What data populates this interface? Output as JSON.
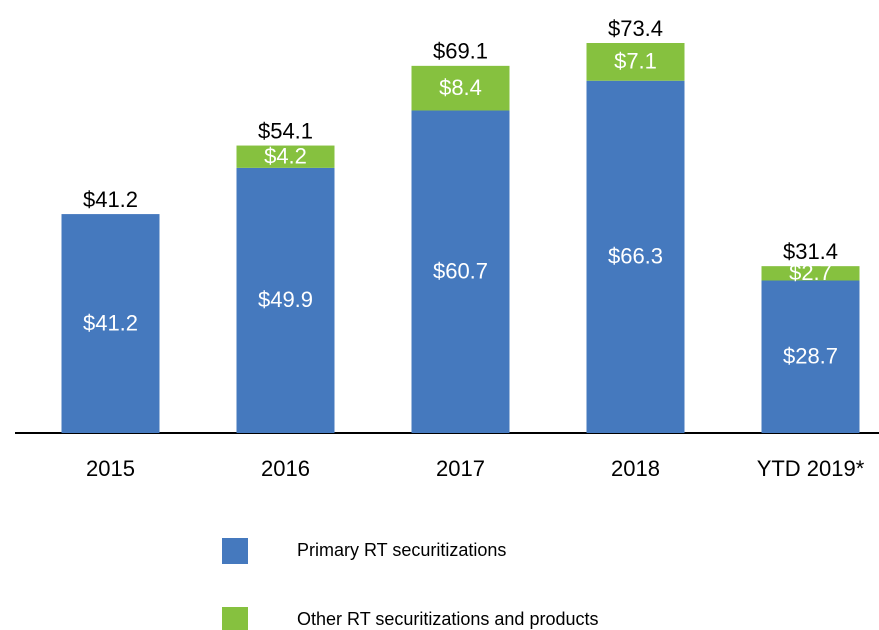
{
  "chart_data": {
    "type": "stacked_bar",
    "categories": [
      "2015",
      "2016",
      "2017",
      "2018",
      "YTD 2019*"
    ],
    "series": [
      {
        "name": "Primary RT securitizations",
        "color": "#4579be",
        "values": [
          41.2,
          49.9,
          60.7,
          66.3,
          28.7
        ],
        "value_labels": [
          "$41.2",
          "$49.9",
          "$60.7",
          "$66.3",
          "$28.7"
        ]
      },
      {
        "name": "Other RT securitizations and products",
        "color": "#86c13f",
        "values": [
          0,
          4.2,
          8.4,
          7.1,
          2.7
        ],
        "value_labels": [
          null,
          "$4.2",
          "$8.4",
          "$7.1",
          "$2.7"
        ]
      }
    ],
    "totals": [
      41.2,
      54.1,
      69.1,
      73.4,
      31.4
    ],
    "total_labels": [
      "$41.2",
      "$54.1",
      "$69.1",
      "$73.4",
      "$31.4"
    ],
    "legend": "bottom"
  }
}
